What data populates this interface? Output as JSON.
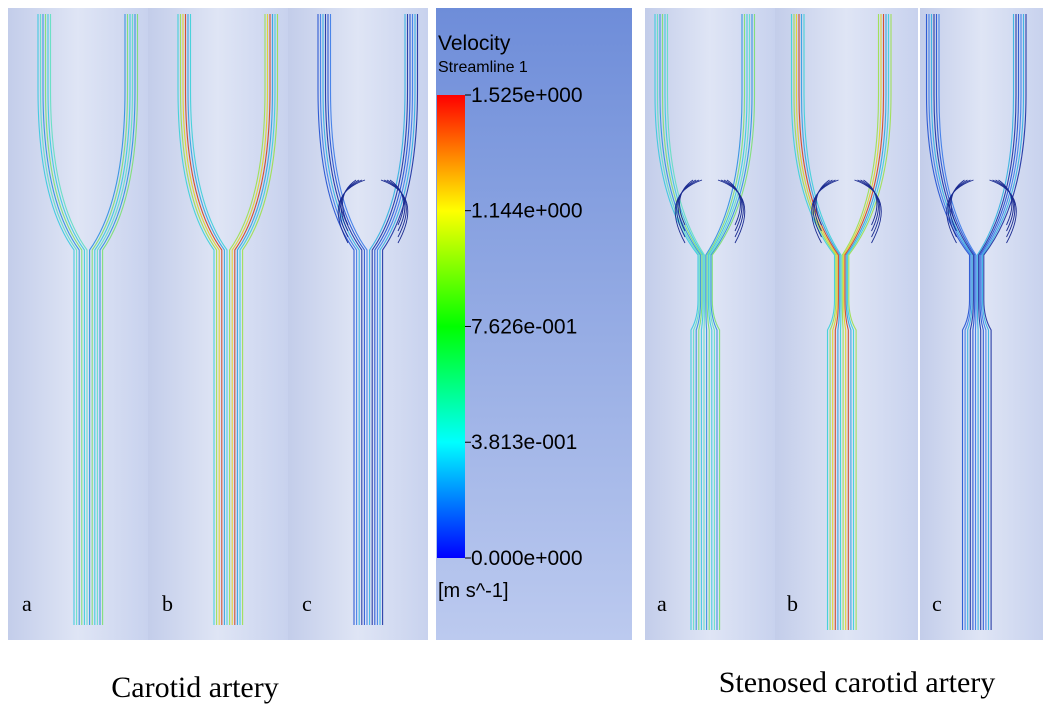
{
  "left": {
    "caption": "Carotid artery",
    "panels": [
      "a",
      "b",
      "c"
    ]
  },
  "right": {
    "caption": "Stenosed carotid artery",
    "panels": [
      "a",
      "b",
      "c"
    ]
  },
  "legend": {
    "title": "Velocity",
    "subtitle": "Streamline 1",
    "unit": "[m s^-1]",
    "ticks": [
      {
        "value": 1.525,
        "label": "1.525e+000"
      },
      {
        "value": 1.144,
        "label": "1.144e+000"
      },
      {
        "value": 0.7626,
        "label": "7.626e-001"
      },
      {
        "value": 0.3813,
        "label": "3.813e-001"
      },
      {
        "value": 0,
        "label": "0.000e+000"
      }
    ]
  }
}
